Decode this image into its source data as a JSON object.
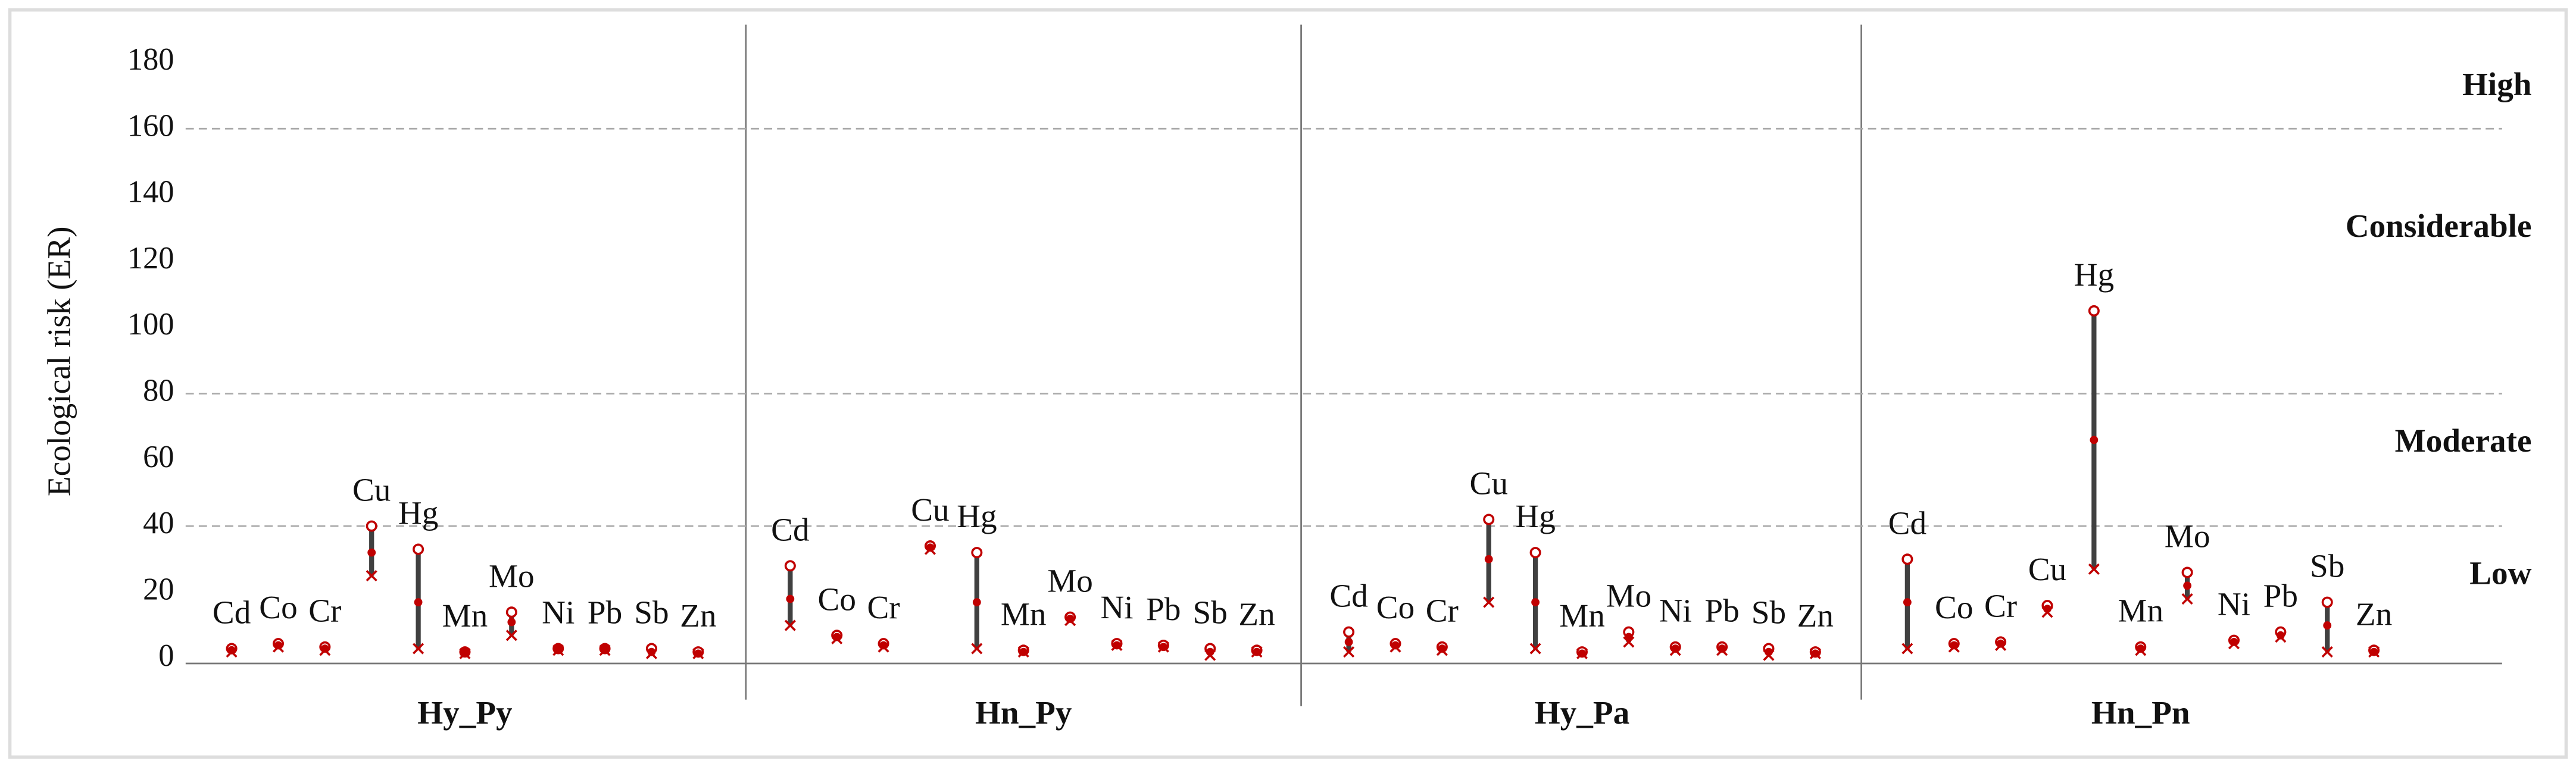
{
  "chart_data": {
    "type": "range",
    "y_label": "Ecological risk (ER)",
    "categories": [
      "Cd",
      "Co",
      "Cr",
      "Cu",
      "Hg",
      "Mn",
      "Mo",
      "Ni",
      "Pb",
      "Sb",
      "Zn"
    ],
    "groups": [
      {
        "name": "Hy_Py",
        "min": [
          2,
          3.5,
          2.5,
          25,
          3,
          1.5,
          7,
          2.5,
          2.5,
          1.5,
          1.5
        ],
        "mean": [
          2.5,
          4,
          3,
          32,
          17,
          2,
          11,
          3,
          3,
          2,
          1.5
        ],
        "max": [
          3,
          4.5,
          3.5,
          40,
          33,
          2,
          14,
          3,
          3,
          3,
          2
        ]
      },
      {
        "name": "Hn_Py",
        "min": [
          10,
          6,
          3.5,
          33,
          3,
          2,
          11.5,
          4,
          3.5,
          1,
          2
        ],
        "mean": [
          18,
          6.5,
          4,
          33.5,
          17,
          2,
          12,
          4,
          3.5,
          2,
          2
        ],
        "max": [
          28,
          7,
          4.5,
          34,
          32,
          2.5,
          12.5,
          4.5,
          4,
          3,
          2.5
        ]
      },
      {
        "name": "Hy_Pa",
        "min": [
          2,
          3.5,
          2.5,
          17,
          3,
          1.5,
          5,
          2.5,
          2.5,
          1,
          1.5
        ],
        "mean": [
          5,
          4,
          3,
          30,
          17,
          1.5,
          6.5,
          3,
          3,
          2,
          1.5
        ],
        "max": [
          8,
          4.5,
          3.5,
          42,
          32,
          2,
          8,
          3.5,
          3.5,
          3,
          2
        ]
      },
      {
        "name": "Hn_Pn",
        "min": [
          3,
          3.5,
          4,
          14,
          27,
          2.5,
          18,
          4.5,
          6.5,
          2,
          2
        ],
        "mean": [
          17,
          4,
          4.5,
          15,
          66,
          3,
          22,
          5,
          7,
          10,
          2
        ],
        "max": [
          30,
          4.5,
          5,
          16,
          105,
          3.5,
          26,
          5.5,
          8,
          17,
          2.5
        ]
      }
    ],
    "risk_lines": [
      40,
      80,
      160
    ],
    "zones": [
      "Low",
      "Moderate",
      "Considerable",
      "High"
    ],
    "ylim": [
      0,
      180
    ],
    "yticks": [
      0,
      20,
      40,
      60,
      80,
      100,
      120,
      140,
      160,
      180
    ],
    "line_color": "#404040",
    "marker_color": "#c00000"
  }
}
